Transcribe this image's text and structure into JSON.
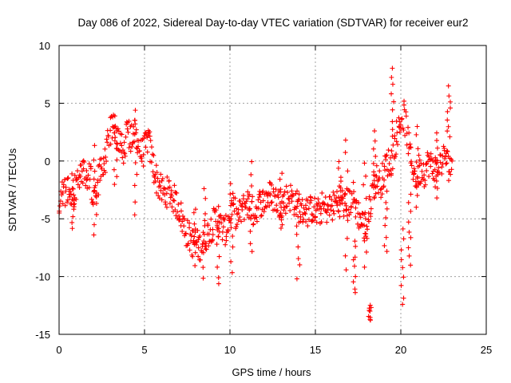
{
  "chart_data": {
    "type": "scatter",
    "title": "Day 086 of 2022, Sidereal Day-to-day VTEC variation (SDTVAR) for receiver eur2",
    "xlabel": "GPS time / hours",
    "ylabel": "SDTVAR / TECUs",
    "xlim": [
      0,
      25
    ],
    "ylim": [
      -15,
      10
    ],
    "xticks": [
      0,
      5,
      10,
      15,
      20,
      25
    ],
    "yticks": [
      -15,
      -10,
      -5,
      0,
      5,
      10
    ],
    "xtick_labels": [
      "0",
      "5",
      "10",
      "15",
      "20",
      "25"
    ],
    "ytick_labels": [
      "-15",
      "-10",
      "-5",
      "0",
      "5",
      "10"
    ],
    "grid": true,
    "marker": "+",
    "series": [
      {
        "name": "SDTVAR",
        "color": "#ff0000",
        "x": [
          0.0,
          0.2,
          0.4,
          0.6,
          0.8,
          1.0,
          1.2,
          1.4,
          1.6,
          1.8,
          2.0,
          2.2,
          2.4,
          2.6,
          2.8,
          3.0,
          3.2,
          3.4,
          3.6,
          3.8,
          4.0,
          4.2,
          4.4,
          4.6,
          4.8,
          5.0,
          5.2,
          5.4,
          5.6,
          5.8,
          6.0,
          6.2,
          6.4,
          6.6,
          6.8,
          7.0,
          7.2,
          7.4,
          7.6,
          7.8,
          8.0,
          8.2,
          8.4,
          8.6,
          8.8,
          9.0,
          9.2,
          9.4,
          9.6,
          9.8,
          10.0,
          10.2,
          10.4,
          10.6,
          10.8,
          11.0,
          11.2,
          11.4,
          11.6,
          11.8,
          12.0,
          12.2,
          12.4,
          12.6,
          12.8,
          13.0,
          13.2,
          13.4,
          13.6,
          13.8,
          14.0,
          14.2,
          14.4,
          14.6,
          14.8,
          15.0,
          15.2,
          15.4,
          15.6,
          15.8,
          16.0,
          16.2,
          16.4,
          16.6,
          16.8,
          17.0,
          17.2,
          17.4,
          17.6,
          17.8,
          18.0,
          18.2,
          18.4,
          18.6,
          18.8,
          19.0,
          19.2,
          19.4,
          19.6,
          19.8,
          20.0,
          20.2,
          20.4,
          20.6,
          20.8,
          21.0,
          21.2,
          21.4,
          21.6,
          21.8,
          22.0,
          22.2,
          22.4,
          22.6,
          22.8,
          23.0
        ],
        "values": [
          -3.5,
          -3.0,
          -2.5,
          -2.8,
          -3.2,
          -2.0,
          -1.5,
          -1.0,
          -1.5,
          -1.0,
          -3.0,
          -2.5,
          -0.5,
          -0.8,
          1.0,
          2.5,
          2.8,
          2.0,
          1.5,
          1.0,
          2.5,
          2.0,
          2.8,
          1.8,
          0.5,
          1.0,
          2.0,
          0.5,
          -1.0,
          -2.0,
          -2.5,
          -3.0,
          -2.5,
          -3.0,
          -3.5,
          -4.0,
          -5.0,
          -6.0,
          -6.5,
          -7.0,
          -7.0,
          -7.5,
          -7.0,
          -6.5,
          -6.0,
          -5.5,
          -5.0,
          -5.5,
          -6.0,
          -6.0,
          -4.5,
          -4.0,
          -5.0,
          -4.5,
          -4.0,
          -3.5,
          -4.0,
          -4.5,
          -4.0,
          -3.5,
          -3.5,
          -3.0,
          -3.0,
          -3.2,
          -3.5,
          -3.8,
          -3.5,
          -3.0,
          -3.2,
          -3.5,
          -4.0,
          -4.5,
          -4.0,
          -4.5,
          -4.0,
          -4.5,
          -4.5,
          -4.0,
          -4.2,
          -4.0,
          -4.0,
          -3.5,
          -3.0,
          -3.5,
          -4.0,
          -3.5,
          -3.0,
          -4.0,
          -5.0,
          -5.5,
          -6.0,
          -4.0,
          -2.0,
          -1.5,
          -2.0,
          -1.0,
          0.0,
          -0.5,
          1.0,
          2.5,
          3.5,
          4.0,
          2.0,
          0.0,
          -1.0,
          -1.5,
          -0.5,
          -1.0,
          0.0,
          -0.5,
          -1.0,
          -0.5,
          0.0,
          0.5,
          -0.5,
          0.0
        ],
        "excursions": [
          {
            "x": 0.8,
            "low": -6.0,
            "high": -1.0
          },
          {
            "x": 2.1,
            "low": -6.5,
            "high": 1.2
          },
          {
            "x": 3.3,
            "low": -2.0,
            "high": 3.8
          },
          {
            "x": 4.5,
            "low": -4.5,
            "high": 4.5
          },
          {
            "x": 7.9,
            "low": -9.0,
            "high": -4.0
          },
          {
            "x": 8.5,
            "low": -10.0,
            "high": -2.5
          },
          {
            "x": 9.3,
            "low": -10.8,
            "high": -4.0
          },
          {
            "x": 10.1,
            "low": -9.5,
            "high": -2.0
          },
          {
            "x": 11.2,
            "low": -8.0,
            "high": 0.0
          },
          {
            "x": 13.0,
            "low": -6.0,
            "high": -1.0
          },
          {
            "x": 14.0,
            "low": -10.0,
            "high": -3.0
          },
          {
            "x": 16.4,
            "low": -5.0,
            "high": 0.0
          },
          {
            "x": 16.8,
            "low": -9.5,
            "high": 2.0
          },
          {
            "x": 17.3,
            "low": -11.5,
            "high": -7.0
          },
          {
            "x": 17.9,
            "low": -9.0,
            "high": 0.0
          },
          {
            "x": 18.2,
            "low": -13.8,
            "high": -12.5
          },
          {
            "x": 18.5,
            "low": -3.0,
            "high": 2.5
          },
          {
            "x": 19.1,
            "low": -8.0,
            "high": -2.0
          },
          {
            "x": 19.5,
            "low": 2.0,
            "high": 8.0
          },
          {
            "x": 20.1,
            "low": -12.5,
            "high": -6.0
          },
          {
            "x": 20.5,
            "low": -9.0,
            "high": -3.0
          },
          {
            "x": 21.0,
            "low": -4.0,
            "high": 3.0
          },
          {
            "x": 22.1,
            "low": -3.0,
            "high": 2.5
          },
          {
            "x": 22.8,
            "low": 2.0,
            "high": 6.3
          }
        ]
      }
    ]
  }
}
